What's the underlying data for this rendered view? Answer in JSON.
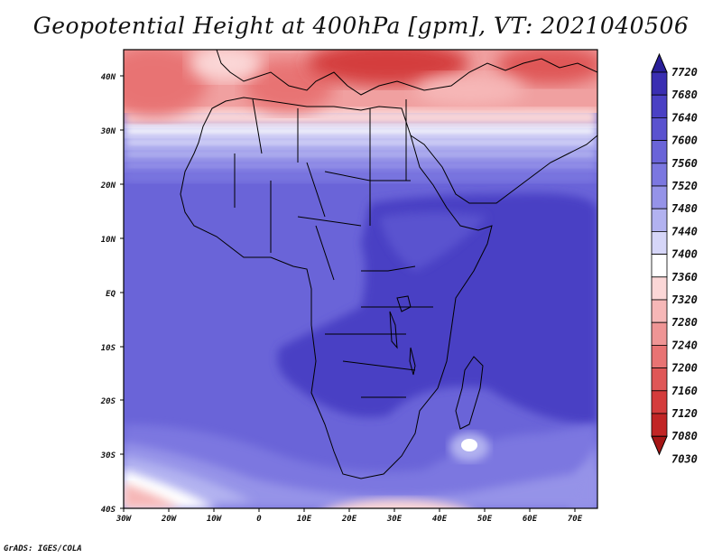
{
  "map": {
    "title": "Geopotential Height at 400hPa [gpm], VT: 2021040506",
    "footer": "GrADS: IGES/COLA",
    "lat_labels": [
      "40N",
      "30N",
      "20N",
      "10N",
      "EQ",
      "10S",
      "20S",
      "30S",
      "40S"
    ],
    "lon_labels": [
      "30W",
      "20W",
      "10W",
      "0",
      "10E",
      "20E",
      "30E",
      "40E",
      "50E",
      "60E",
      "70E"
    ],
    "colorbar": {
      "levels": [
        "7720",
        "7680",
        "7640",
        "7600",
        "7560",
        "7520",
        "7480",
        "7440",
        "7400",
        "7360",
        "7320",
        "7280",
        "7240",
        "7200",
        "7160",
        "7120",
        "7080",
        "7030"
      ],
      "colors": [
        "#2a1f99",
        "#3a2eb2",
        "#4a40c4",
        "#5a52cf",
        "#6a64d8",
        "#7b77e0",
        "#9593e8",
        "#b2b2f0",
        "#d6d6f8",
        "#ffffff",
        "#fbd7d7",
        "#f6b7b7",
        "#ef9595",
        "#e87373",
        "#df5757",
        "#d43c3c",
        "#c12525",
        "#a51515"
      ]
    }
  }
}
